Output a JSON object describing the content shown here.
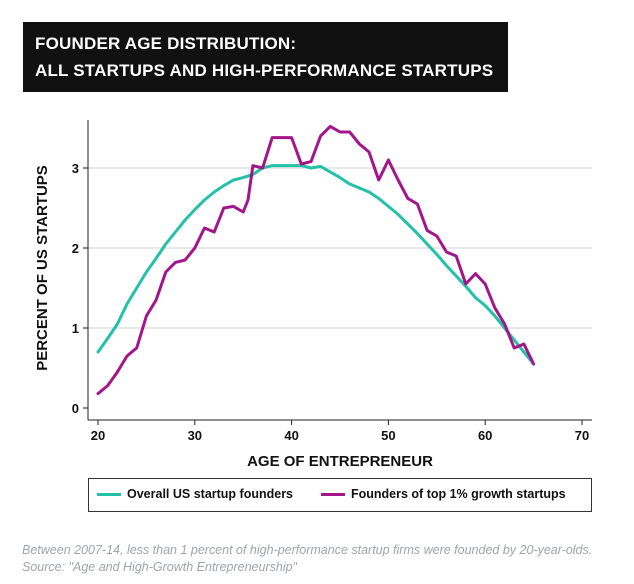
{
  "title": {
    "line1": "FOUNDER AGE DISTRIBUTION:",
    "line2": "ALL STARTUPS AND HIGH-PERFORMANCE STARTUPS"
  },
  "caption": "Between 2007-14, less than 1 percent of high-performance startup firms were founded by 20-year-olds. Source: \"Age and High-Growth Entrepreneurship\"",
  "colors": {
    "overall": "#22c1a8",
    "top1": "#a3168a",
    "grid": "#d9d9d9",
    "axis": "#222222"
  },
  "chart_data": {
    "type": "line",
    "title": "FOUNDER AGE DISTRIBUTION: ALL STARTUPS AND HIGH-PERFORMANCE STARTUPS",
    "xlabel": "AGE OF ENTREPRENEUR",
    "ylabel": "PERCENT OF US STARTUPS",
    "xlim": [
      20,
      70
    ],
    "ylim": [
      0,
      3.6
    ],
    "xticks": [
      20,
      30,
      40,
      50,
      60,
      70
    ],
    "yticks": [
      0,
      1,
      2,
      3
    ],
    "grid": "horizontal",
    "legend_position": "bottom",
    "series": [
      {
        "name": "Overall US startup founders",
        "x": [
          20,
          21,
          22,
          23,
          24,
          25,
          26,
          27,
          28,
          29,
          30,
          31,
          32,
          33,
          34,
          35,
          36,
          37,
          38,
          39,
          40,
          41,
          42,
          43,
          44,
          45,
          46,
          47,
          48,
          49,
          50,
          51,
          52,
          53,
          54,
          55,
          56,
          57,
          58,
          59,
          60,
          61,
          62,
          63,
          64,
          65
        ],
        "y": [
          0.7,
          0.87,
          1.05,
          1.3,
          1.5,
          1.7,
          1.87,
          2.05,
          2.2,
          2.35,
          2.48,
          2.6,
          2.7,
          2.78,
          2.85,
          2.88,
          2.92,
          3.0,
          3.03,
          3.03,
          3.03,
          3.03,
          3.0,
          3.02,
          2.95,
          2.88,
          2.8,
          2.75,
          2.7,
          2.62,
          2.52,
          2.42,
          2.3,
          2.18,
          2.05,
          1.92,
          1.78,
          1.65,
          1.52,
          1.38,
          1.28,
          1.15,
          1.0,
          0.85,
          0.7,
          0.55
        ]
      },
      {
        "name": "Founders of top 1% growth startups",
        "x": [
          20,
          21,
          22,
          23,
          24,
          25,
          26,
          27,
          28,
          29,
          30,
          31,
          32,
          33,
          34,
          35,
          35.5,
          36,
          37,
          38,
          39,
          40,
          41,
          42,
          43,
          44,
          45,
          46,
          47,
          48,
          49,
          50,
          51,
          52,
          53,
          54,
          55,
          56,
          57,
          58,
          59,
          60,
          61,
          62,
          63,
          64,
          65
        ],
        "y": [
          0.18,
          0.28,
          0.45,
          0.65,
          0.75,
          1.15,
          1.35,
          1.7,
          1.82,
          1.85,
          2.0,
          2.25,
          2.2,
          2.5,
          2.52,
          2.45,
          2.6,
          3.03,
          3.0,
          3.38,
          3.38,
          3.38,
          3.05,
          3.08,
          3.4,
          3.52,
          3.45,
          3.45,
          3.3,
          3.2,
          2.85,
          3.1,
          2.85,
          2.62,
          2.55,
          2.22,
          2.15,
          1.95,
          1.9,
          1.55,
          1.68,
          1.55,
          1.25,
          1.05,
          0.75,
          0.8,
          0.55
        ]
      }
    ]
  },
  "legend": {
    "overall_label": "Overall US startup founders",
    "top1_label": "Founders of top 1% growth startups"
  }
}
